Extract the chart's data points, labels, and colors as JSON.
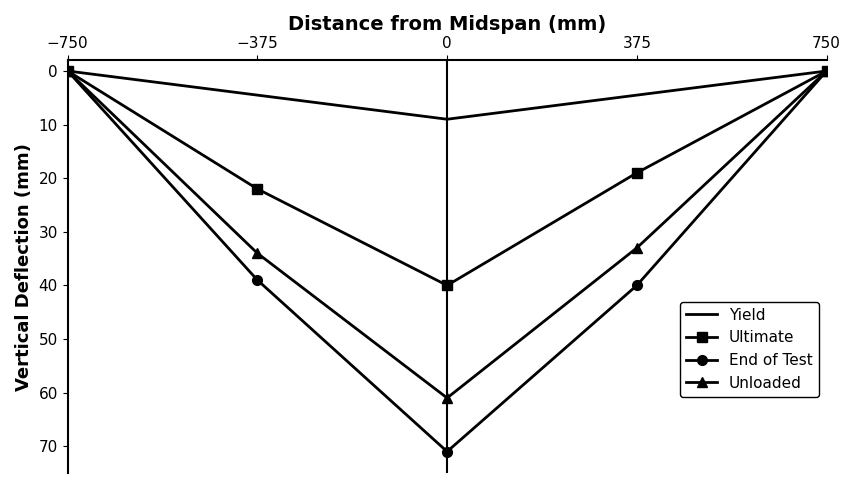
{
  "title": "Distance from Midspan (mm)",
  "ylabel": "Vertical Deflection (mm)",
  "xlim": [
    -750,
    750
  ],
  "ylim": [
    75,
    -2
  ],
  "xticks": [
    -750,
    -375,
    0,
    375,
    750
  ],
  "yticks": [
    0,
    10,
    20,
    30,
    40,
    50,
    60,
    70
  ],
  "series": [
    {
      "label": "Yield",
      "x": [
        -750,
        0,
        750
      ],
      "y": [
        0,
        9,
        0
      ],
      "marker": "None",
      "linestyle": "-",
      "linewidth": 2.0,
      "color": "#000000"
    },
    {
      "label": "Ultimate",
      "x": [
        -750,
        -375,
        0,
        375,
        750
      ],
      "y": [
        0,
        22,
        40,
        19,
        0
      ],
      "marker": "s",
      "linestyle": "-",
      "linewidth": 2.0,
      "color": "#000000"
    },
    {
      "label": "End of Test",
      "x": [
        -750,
        -375,
        0,
        375,
        750
      ],
      "y": [
        0,
        39,
        71,
        40,
        0
      ],
      "marker": "o",
      "linestyle": "-",
      "linewidth": 2.0,
      "color": "#000000"
    },
    {
      "label": "Unloaded",
      "x": [
        -750,
        -375,
        0,
        375,
        750
      ],
      "y": [
        0,
        34,
        61,
        33,
        0
      ],
      "marker": "^",
      "linestyle": "-",
      "linewidth": 2.0,
      "color": "#000000"
    }
  ],
  "legend_loc": "center right",
  "background_color": "#ffffff",
  "title_fontsize": 14,
  "label_fontsize": 13,
  "tick_fontsize": 11,
  "figsize": [
    8.56,
    4.88
  ],
  "dpi": 100
}
